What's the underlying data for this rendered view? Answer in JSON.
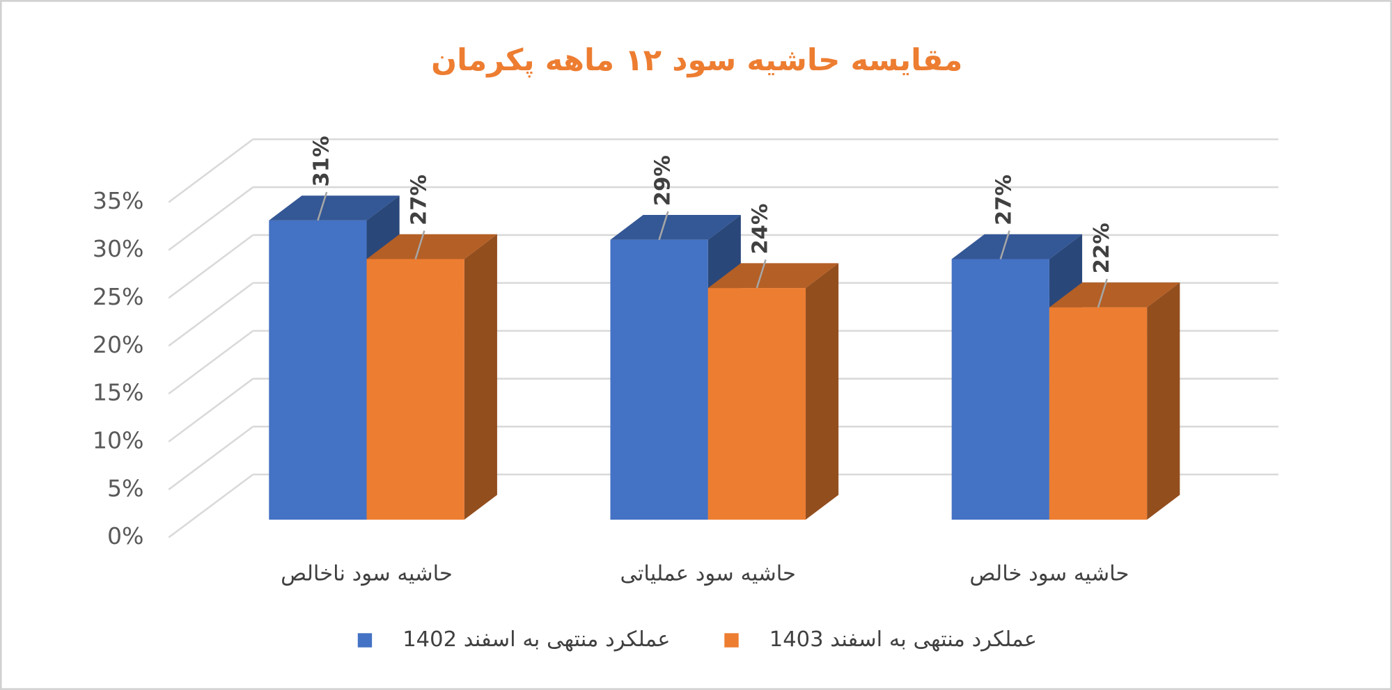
{
  "chart_data": {
    "type": "bar3d",
    "title": "مقایسه حاشیه سود ۱۲ ماهه پکرمان",
    "categories": [
      "حاشیه سود ناخالص",
      "حاشیه سود عملیاتی",
      "حاشیه سود خالص"
    ],
    "series": [
      {
        "name": "عملکرد منتهی به اسفند 1402",
        "color": "#4472c4",
        "values": [
          31,
          29,
          27
        ],
        "value_labels": [
          "31%",
          "29%",
          "27%"
        ]
      },
      {
        "name": "عملکرد منتهی به اسفند 1403",
        "color": "#ed7d31",
        "values": [
          27,
          24,
          22
        ],
        "value_labels": [
          "27%",
          "24%",
          "22%"
        ]
      }
    ],
    "ylim": [
      0,
      35
    ],
    "yticks": [
      {
        "value": 0,
        "label": "0%"
      },
      {
        "value": 5,
        "label": "5%"
      },
      {
        "value": 10,
        "label": "10%"
      },
      {
        "value": 15,
        "label": "15%"
      },
      {
        "value": 20,
        "label": "20%"
      },
      {
        "value": 25,
        "label": "25%"
      },
      {
        "value": 30,
        "label": "30%"
      },
      {
        "value": 35,
        "label": "35%"
      }
    ],
    "grid": true,
    "legend": "bottom"
  }
}
